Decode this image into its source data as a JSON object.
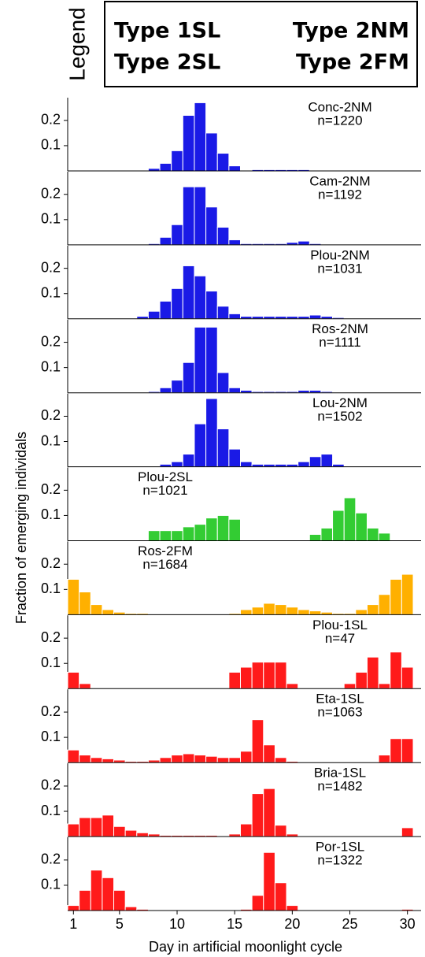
{
  "legend": {
    "title": "Legend",
    "entries": [
      {
        "name": "Type 1SL",
        "color": "#ff1a1a"
      },
      {
        "name": "Type 2NM",
        "color": "#1a1ae6"
      },
      {
        "name": "Type 2SL",
        "color": "#33cc33"
      },
      {
        "name": "Type 2FM",
        "color": "#ffb000"
      }
    ]
  },
  "ylabel": "Fraction of emerging individals",
  "xlabel": "Day in artificial moonlight cycle",
  "chart_data": [
    {
      "type": "bar",
      "title": "Conc-2NM",
      "subtitle": "n=1220",
      "label_corner": "top-right",
      "color": "#1a1ae6",
      "x": [
        1,
        2,
        3,
        4,
        5,
        6,
        7,
        8,
        9,
        10,
        11,
        12,
        13,
        14,
        15,
        16,
        17,
        18,
        19,
        20,
        21,
        22,
        23,
        24,
        25,
        26,
        27,
        28,
        29,
        30
      ],
      "values": [
        0,
        0,
        0,
        0,
        0,
        0,
        0.003,
        0.01,
        0.03,
        0.08,
        0.22,
        0.27,
        0.15,
        0.07,
        0.02,
        0.003,
        0.005,
        0.005,
        0.005,
        0.005,
        0.005,
        0.003,
        0,
        0,
        0,
        0,
        0,
        0,
        0,
        0
      ],
      "xlim": [
        0.5,
        30.5
      ],
      "ylim": [
        0,
        0.29
      ],
      "yticks": [
        0.1,
        0.2
      ]
    },
    {
      "type": "bar",
      "title": "Cam-2NM",
      "subtitle": "n=1192",
      "label_corner": "top-right",
      "color": "#1a1ae6",
      "x": [
        1,
        2,
        3,
        4,
        5,
        6,
        7,
        8,
        9,
        10,
        11,
        12,
        13,
        14,
        15,
        16,
        17,
        18,
        19,
        20,
        21,
        22,
        23,
        24,
        25,
        26,
        27,
        28,
        29,
        30
      ],
      "values": [
        0,
        0,
        0,
        0,
        0,
        0,
        0.003,
        0.005,
        0.03,
        0.08,
        0.23,
        0.23,
        0.15,
        0.07,
        0.02,
        0.005,
        0.005,
        0.005,
        0.005,
        0.01,
        0.015,
        0.005,
        0,
        0,
        0,
        0,
        0,
        0,
        0,
        0
      ],
      "xlim": [
        0.5,
        30.5
      ],
      "ylim": [
        0,
        0.29
      ],
      "yticks": [
        0.1,
        0.2
      ]
    },
    {
      "type": "bar",
      "title": "Plou-2NM",
      "subtitle": "n=1031",
      "label_corner": "top-right",
      "color": "#1a1ae6",
      "x": [
        1,
        2,
        3,
        4,
        5,
        6,
        7,
        8,
        9,
        10,
        11,
        12,
        13,
        14,
        15,
        16,
        17,
        18,
        19,
        20,
        21,
        22,
        23,
        24,
        25,
        26,
        27,
        28,
        29,
        30
      ],
      "values": [
        0,
        0,
        0,
        0,
        0,
        0,
        0.01,
        0.03,
        0.07,
        0.12,
        0.21,
        0.17,
        0.11,
        0.05,
        0.02,
        0.01,
        0.01,
        0.01,
        0.01,
        0.01,
        0.01,
        0.015,
        0.01,
        0.005,
        0,
        0,
        0,
        0,
        0,
        0
      ],
      "xlim": [
        0.5,
        30.5
      ],
      "ylim": [
        0,
        0.29
      ],
      "yticks": [
        0.1,
        0.2
      ]
    },
    {
      "type": "bar",
      "title": "Ros-2NM",
      "subtitle": "n=1111",
      "label_corner": "top-right",
      "color": "#1a1ae6",
      "x": [
        1,
        2,
        3,
        4,
        5,
        6,
        7,
        8,
        9,
        10,
        11,
        12,
        13,
        14,
        15,
        16,
        17,
        18,
        19,
        20,
        21,
        22,
        23,
        24,
        25,
        26,
        27,
        28,
        29,
        30
      ],
      "values": [
        0,
        0,
        0,
        0,
        0,
        0,
        0.003,
        0.005,
        0.02,
        0.05,
        0.12,
        0.26,
        0.26,
        0.08,
        0.02,
        0.01,
        0.005,
        0.005,
        0.005,
        0.005,
        0.01,
        0.01,
        0.005,
        0,
        0,
        0,
        0,
        0,
        0,
        0
      ],
      "xlim": [
        0.5,
        30.5
      ],
      "ylim": [
        0,
        0.29
      ],
      "yticks": [
        0.1,
        0.2
      ]
    },
    {
      "type": "bar",
      "title": "Lou-2NM",
      "subtitle": "n=1502",
      "label_corner": "top-right",
      "color": "#1a1ae6",
      "x": [
        1,
        2,
        3,
        4,
        5,
        6,
        7,
        8,
        9,
        10,
        11,
        12,
        13,
        14,
        15,
        16,
        17,
        18,
        19,
        20,
        21,
        22,
        23,
        24,
        25,
        26,
        27,
        28,
        29,
        30
      ],
      "values": [
        0,
        0,
        0,
        0,
        0,
        0,
        0,
        0,
        0.01,
        0.02,
        0.05,
        0.17,
        0.27,
        0.15,
        0.07,
        0.02,
        0.01,
        0.01,
        0.01,
        0.01,
        0.02,
        0.04,
        0.05,
        0.01,
        0,
        0,
        0,
        0,
        0,
        0
      ],
      "xlim": [
        0.5,
        30.5
      ],
      "ylim": [
        0,
        0.29
      ],
      "yticks": [
        0.1,
        0.2
      ]
    },
    {
      "type": "bar",
      "title": "Plou-2SL",
      "subtitle": "n=1021",
      "label_corner": "top-left",
      "color": "#33cc33",
      "x": [
        1,
        2,
        3,
        4,
        5,
        6,
        7,
        8,
        9,
        10,
        11,
        12,
        13,
        14,
        15,
        16,
        17,
        18,
        19,
        20,
        21,
        22,
        23,
        24,
        25,
        26,
        27,
        28,
        29,
        30
      ],
      "values": [
        0,
        0,
        0,
        0,
        0,
        0,
        0,
        0.04,
        0.04,
        0.04,
        0.055,
        0.065,
        0.09,
        0.1,
        0.085,
        0,
        0,
        0,
        0,
        0,
        0,
        0.025,
        0.05,
        0.12,
        0.17,
        0.11,
        0.05,
        0.03,
        0,
        0
      ],
      "xlim": [
        0.5,
        30.5
      ],
      "ylim": [
        0,
        0.29
      ],
      "yticks": [
        0.1,
        0.2
      ]
    },
    {
      "type": "bar",
      "title": "Ros-2FM",
      "subtitle": "n=1684",
      "label_corner": "top-left",
      "color": "#ffb000",
      "x": [
        1,
        2,
        3,
        4,
        5,
        6,
        7,
        8,
        9,
        10,
        11,
        12,
        13,
        14,
        15,
        16,
        17,
        18,
        19,
        20,
        21,
        22,
        23,
        24,
        25,
        26,
        27,
        28,
        29,
        30
      ],
      "values": [
        0.14,
        0.09,
        0.04,
        0.02,
        0.01,
        0.005,
        0.005,
        0,
        0,
        0,
        0,
        0,
        0,
        0,
        0.005,
        0.02,
        0.03,
        0.045,
        0.04,
        0.03,
        0.02,
        0.015,
        0.01,
        0.005,
        0.005,
        0.02,
        0.04,
        0.08,
        0.14,
        0.16
      ],
      "xlim": [
        0.5,
        30.5
      ],
      "ylim": [
        0,
        0.29
      ],
      "yticks": [
        0.1,
        0.2
      ]
    },
    {
      "type": "bar",
      "title": "Plou-1SL",
      "subtitle": "n=47",
      "label_corner": "top-right",
      "color": "#ff1a1a",
      "x": [
        1,
        2,
        3,
        4,
        5,
        6,
        7,
        8,
        9,
        10,
        11,
        12,
        13,
        14,
        15,
        16,
        17,
        18,
        19,
        20,
        21,
        22,
        23,
        24,
        25,
        26,
        27,
        28,
        29,
        30
      ],
      "values": [
        0.065,
        0.02,
        0,
        0,
        0,
        0,
        0,
        0,
        0,
        0,
        0,
        0,
        0,
        0,
        0.065,
        0.085,
        0.105,
        0.105,
        0.105,
        0.02,
        0,
        0,
        0,
        0,
        0.02,
        0.065,
        0.125,
        0.02,
        0.145,
        0.085
      ],
      "xlim": [
        0.5,
        30.5
      ],
      "ylim": [
        0,
        0.29
      ],
      "yticks": [
        0.1,
        0.2
      ]
    },
    {
      "type": "bar",
      "title": "Eta-1SL",
      "subtitle": "n=1063",
      "label_corner": "top-right",
      "color": "#ff1a1a",
      "x": [
        1,
        2,
        3,
        4,
        5,
        6,
        7,
        8,
        9,
        10,
        11,
        12,
        13,
        14,
        15,
        16,
        17,
        18,
        19,
        20,
        21,
        22,
        23,
        24,
        25,
        26,
        27,
        28,
        29,
        30
      ],
      "values": [
        0.05,
        0.03,
        0.02,
        0.015,
        0.01,
        0.005,
        0.005,
        0.01,
        0.02,
        0.03,
        0.035,
        0.03,
        0.025,
        0.02,
        0.02,
        0.045,
        0.17,
        0.07,
        0.02,
        0.005,
        0,
        0,
        0,
        0,
        0,
        0,
        0,
        0.03,
        0.095,
        0.095
      ],
      "xlim": [
        0.5,
        30.5
      ],
      "ylim": [
        0,
        0.29
      ],
      "yticks": [
        0.1,
        0.2
      ]
    },
    {
      "type": "bar",
      "title": "Bria-1SL",
      "subtitle": "n=1482",
      "label_corner": "top-right",
      "color": "#ff1a1a",
      "x": [
        1,
        2,
        3,
        4,
        5,
        6,
        7,
        8,
        9,
        10,
        11,
        12,
        13,
        14,
        15,
        16,
        17,
        18,
        19,
        20,
        21,
        22,
        23,
        24,
        25,
        26,
        27,
        28,
        29,
        30
      ],
      "values": [
        0.05,
        0.075,
        0.075,
        0.085,
        0.04,
        0.025,
        0.015,
        0.01,
        0.005,
        0.005,
        0.005,
        0.005,
        0.005,
        0,
        0.01,
        0.05,
        0.17,
        0.19,
        0.045,
        0.01,
        0,
        0,
        0,
        0,
        0,
        0,
        0,
        0,
        0,
        0.035
      ],
      "xlim": [
        0.5,
        30.5
      ],
      "ylim": [
        0,
        0.29
      ],
      "yticks": [
        0.1,
        0.2
      ]
    },
    {
      "type": "bar",
      "title": "Por-1SL",
      "subtitle": "n=1322",
      "label_corner": "top-right",
      "color": "#ff1a1a",
      "x": [
        1,
        2,
        3,
        4,
        5,
        6,
        7,
        8,
        9,
        10,
        11,
        12,
        13,
        14,
        15,
        16,
        17,
        18,
        19,
        20,
        21,
        22,
        23,
        24,
        25,
        26,
        27,
        28,
        29,
        30
      ],
      "values": [
        0.02,
        0.08,
        0.16,
        0.13,
        0.08,
        0.015,
        0.005,
        0,
        0,
        0,
        0,
        0,
        0,
        0,
        0,
        0.005,
        0.06,
        0.23,
        0.11,
        0.02,
        0,
        0,
        0,
        0,
        0,
        0,
        0,
        0,
        0,
        0.005
      ],
      "xlim": [
        0.5,
        30.5
      ],
      "ylim": [
        0,
        0.29
      ],
      "yticks": [
        0.1,
        0.2
      ],
      "xticks": [
        1,
        5,
        10,
        15,
        20,
        25,
        30
      ]
    }
  ]
}
